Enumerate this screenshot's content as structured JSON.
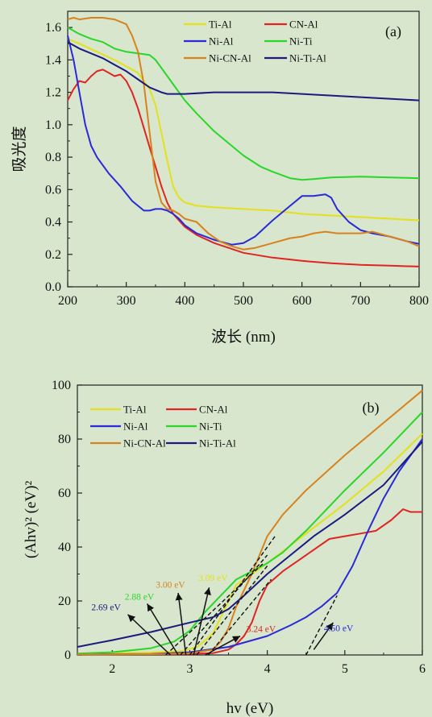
{
  "chart_data": [
    {
      "type": "line",
      "panel_label": "(a)",
      "xlabel": "波长 (nm)",
      "ylabel": "吸光度",
      "xlim": [
        200,
        800
      ],
      "ylim": [
        0,
        1.7
      ],
      "xticks": [
        200,
        300,
        400,
        500,
        600,
        700,
        800
      ],
      "yticks": [
        0.0,
        0.2,
        0.4,
        0.6,
        0.8,
        1.0,
        1.2,
        1.4,
        1.6
      ],
      "xtick_labels": [
        "200",
        "300",
        "400",
        "500",
        "600",
        "700",
        "800"
      ],
      "ytick_labels": [
        "0.0",
        "0.2",
        "0.4",
        "0.6",
        "0.8",
        "1.0",
        "1.2",
        "1.4",
        "1.6"
      ],
      "legend_position": "top-right",
      "grid": false,
      "series": [
        {
          "name": "Ti-Al",
          "color": "#e4e01c",
          "x": [
            200,
            220,
            250,
            280,
            300,
            320,
            340,
            350,
            360,
            370,
            380,
            390,
            400,
            420,
            450,
            500,
            550,
            600,
            650,
            700,
            750,
            800
          ],
          "y": [
            1.53,
            1.5,
            1.45,
            1.4,
            1.36,
            1.32,
            1.22,
            1.12,
            0.95,
            0.78,
            0.62,
            0.55,
            0.52,
            0.5,
            0.49,
            0.48,
            0.47,
            0.45,
            0.44,
            0.43,
            0.42,
            0.41
          ]
        },
        {
          "name": "CN-Al",
          "color": "#e02424",
          "x": [
            200,
            210,
            220,
            230,
            240,
            250,
            260,
            270,
            280,
            290,
            300,
            310,
            320,
            330,
            340,
            350,
            360,
            370,
            380,
            400,
            420,
            450,
            500,
            550,
            600,
            650,
            700,
            750,
            800
          ],
          "y": [
            1.15,
            1.22,
            1.27,
            1.26,
            1.3,
            1.33,
            1.34,
            1.32,
            1.3,
            1.31,
            1.27,
            1.2,
            1.1,
            0.98,
            0.86,
            0.74,
            0.62,
            0.52,
            0.45,
            0.37,
            0.32,
            0.27,
            0.21,
            0.18,
            0.16,
            0.145,
            0.135,
            0.13,
            0.125
          ]
        },
        {
          "name": "Ni-Al",
          "color": "#2a2ad8",
          "x": [
            200,
            210,
            220,
            230,
            240,
            250,
            270,
            290,
            310,
            330,
            340,
            350,
            360,
            370,
            380,
            390,
            400,
            420,
            450,
            480,
            500,
            520,
            550,
            580,
            600,
            620,
            640,
            650,
            660,
            680,
            700,
            720,
            750,
            780,
            800
          ],
          "y": [
            1.55,
            1.4,
            1.2,
            1.0,
            0.87,
            0.8,
            0.7,
            0.62,
            0.53,
            0.47,
            0.47,
            0.48,
            0.48,
            0.47,
            0.45,
            0.42,
            0.38,
            0.33,
            0.29,
            0.26,
            0.27,
            0.31,
            0.41,
            0.5,
            0.56,
            0.56,
            0.57,
            0.55,
            0.48,
            0.4,
            0.35,
            0.33,
            0.31,
            0.28,
            0.265
          ]
        },
        {
          "name": "Ni-Ti",
          "color": "#2ad62a",
          "x": [
            200,
            220,
            240,
            260,
            280,
            300,
            320,
            340,
            350,
            360,
            380,
            400,
            420,
            450,
            480,
            500,
            530,
            550,
            580,
            600,
            620,
            650,
            700,
            750,
            800
          ],
          "y": [
            1.6,
            1.56,
            1.53,
            1.51,
            1.47,
            1.45,
            1.44,
            1.43,
            1.4,
            1.35,
            1.25,
            1.15,
            1.07,
            0.96,
            0.87,
            0.81,
            0.74,
            0.71,
            0.67,
            0.66,
            0.665,
            0.675,
            0.68,
            0.675,
            0.67
          ]
        },
        {
          "name": "Ni-CN-Al",
          "color": "#d8821e",
          "x": [
            200,
            210,
            220,
            240,
            260,
            280,
            300,
            310,
            320,
            330,
            340,
            350,
            360,
            370,
            380,
            390,
            400,
            420,
            440,
            460,
            480,
            500,
            520,
            550,
            580,
            600,
            620,
            640,
            660,
            700,
            720,
            740,
            760,
            780,
            800
          ],
          "y": [
            1.65,
            1.66,
            1.65,
            1.66,
            1.66,
            1.65,
            1.62,
            1.55,
            1.45,
            1.25,
            0.95,
            0.65,
            0.52,
            0.48,
            0.47,
            0.45,
            0.42,
            0.4,
            0.33,
            0.28,
            0.25,
            0.23,
            0.24,
            0.27,
            0.3,
            0.31,
            0.33,
            0.34,
            0.33,
            0.33,
            0.34,
            0.32,
            0.3,
            0.28,
            0.25
          ]
        },
        {
          "name": "Ni-Ti-Al",
          "color": "#1a1a80",
          "x": [
            200,
            210,
            220,
            240,
            260,
            280,
            300,
            320,
            340,
            360,
            370,
            380,
            400,
            450,
            500,
            550,
            600,
            650,
            700,
            750,
            800
          ],
          "y": [
            1.51,
            1.49,
            1.47,
            1.44,
            1.41,
            1.37,
            1.33,
            1.28,
            1.23,
            1.2,
            1.19,
            1.19,
            1.19,
            1.2,
            1.2,
            1.2,
            1.19,
            1.18,
            1.17,
            1.16,
            1.15
          ]
        }
      ]
    },
    {
      "type": "line",
      "panel_label": "(b)",
      "xlabel": "hv (eV)",
      "ylabel": "(Ahv)² (eV)²",
      "xlim": [
        1.55,
        6.0
      ],
      "ylim": [
        0,
        100
      ],
      "xticks": [
        2,
        3,
        4,
        5,
        6
      ],
      "yticks": [
        0,
        20,
        40,
        60,
        80,
        100
      ],
      "xtick_labels": [
        "2",
        "3",
        "4",
        "5",
        "6"
      ],
      "ytick_labels": [
        "0",
        "20",
        "40",
        "60",
        "80",
        "100"
      ],
      "legend_position": "top-left",
      "grid": false,
      "series": [
        {
          "name": "Ti-Al",
          "color": "#e4e01c",
          "x": [
            1.55,
            2.0,
            2.5,
            2.9,
            3.1,
            3.3,
            3.4,
            3.5,
            3.6,
            3.8,
            4.0,
            4.5,
            5.0,
            5.5,
            6.0
          ],
          "y": [
            0.5,
            0.7,
            0.9,
            1.5,
            3,
            8,
            14,
            20,
            26,
            30,
            34,
            45,
            56,
            68,
            82
          ]
        },
        {
          "name": "CN-Al",
          "color": "#e02424",
          "x": [
            1.55,
            2.5,
            3.0,
            3.3,
            3.5,
            3.6,
            3.7,
            3.8,
            3.9,
            4.0,
            4.2,
            4.4,
            4.6,
            4.8,
            5.0,
            5.2,
            5.4,
            5.6,
            5.75,
            5.85,
            6.0
          ],
          "y": [
            0.3,
            0.3,
            0.4,
            0.7,
            2,
            4,
            7,
            12,
            20,
            26,
            31,
            35,
            39,
            43,
            44,
            45,
            46,
            50,
            54,
            53,
            53
          ]
        },
        {
          "name": "Ni-Al",
          "color": "#2a2ad8",
          "x": [
            1.55,
            2.0,
            2.5,
            3.0,
            3.5,
            4.0,
            4.3,
            4.5,
            4.7,
            4.9,
            5.1,
            5.3,
            5.5,
            5.7,
            5.9,
            6.0
          ],
          "y": [
            0.3,
            0.3,
            0.4,
            1.0,
            3,
            7,
            11,
            14,
            18,
            23,
            33,
            46,
            58,
            68,
            76,
            80
          ]
        },
        {
          "name": "Ni-Ti",
          "color": "#2ad62a",
          "x": [
            1.55,
            2.0,
            2.5,
            2.8,
            3.0,
            3.2,
            3.4,
            3.5,
            3.6,
            3.8,
            4.0,
            4.2,
            4.5,
            5.0,
            5.5,
            6.0
          ],
          "y": [
            0.5,
            1.0,
            2.5,
            5,
            9,
            16,
            22,
            25,
            28,
            31,
            34,
            38,
            46,
            61,
            75,
            90
          ]
        },
        {
          "name": "Ni-CN-Al",
          "color": "#d8821e",
          "x": [
            1.55,
            2.5,
            3.0,
            3.3,
            3.4,
            3.5,
            3.6,
            3.7,
            3.8,
            3.9,
            4.0,
            4.2,
            4.5,
            5.0,
            5.5,
            6.0
          ],
          "y": [
            0.2,
            0.3,
            0.6,
            2,
            5,
            10,
            18,
            24,
            30,
            37,
            44,
            52,
            61,
            74,
            86,
            98
          ]
        },
        {
          "name": "Ni-Ti-Al",
          "color": "#1a1a80",
          "x": [
            1.55,
            2.0,
            2.5,
            3.0,
            3.3,
            3.5,
            3.7,
            4.0,
            4.3,
            4.6,
            5.0,
            5.5,
            6.0
          ],
          "y": [
            3,
            5.5,
            8.5,
            12,
            14,
            17,
            22,
            30,
            37,
            44,
            52,
            63,
            79
          ]
        }
      ],
      "annotations": [
        {
          "text": "2.69 eV",
          "color": "#1a1a80"
        },
        {
          "text": "2.88 eV",
          "color": "#2ad62a"
        },
        {
          "text": "3.00 eV",
          "color": "#d8821e"
        },
        {
          "text": "3.09 eV",
          "color": "#e4e01c"
        },
        {
          "text": "3.24 eV",
          "color": "#e02424"
        },
        {
          "text": "4.50 eV",
          "color": "#2a2ad8"
        }
      ]
    }
  ]
}
